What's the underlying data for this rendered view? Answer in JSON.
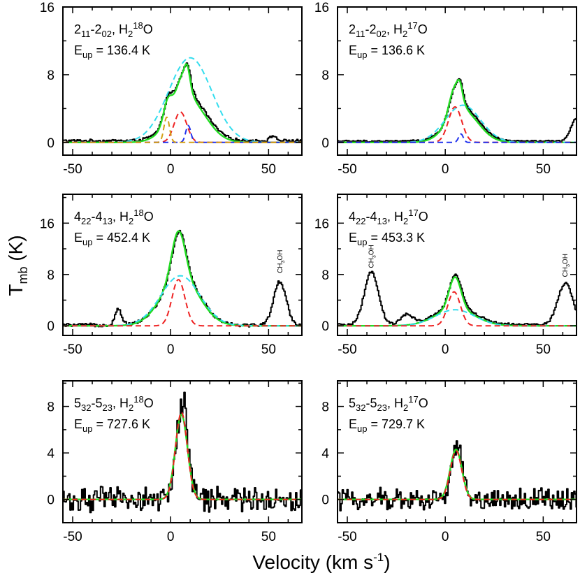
{
  "figure": {
    "ylabel": "Tmb (K)",
    "ylabel_parts": {
      "main": "T",
      "sub": "mb",
      "rest": " (K)"
    },
    "xlabel": "Velocity (km s-1)",
    "xlabel_parts": {
      "main": "Velocity (km s",
      "sup": "-1",
      "rest": ")"
    }
  },
  "chart_data": [
    {
      "type": "line",
      "label_line1": {
        "parts": [
          "2",
          "_11",
          "-2",
          "_02",
          ", H",
          "_2",
          "^18",
          "O"
        ]
      },
      "label_line2": {
        "parts": [
          "E",
          "_up",
          " = 136.4 K"
        ]
      },
      "transition": "2_11-2_02, H2 18O",
      "eup": "136.4 K",
      "xlim": [
        -55,
        67
      ],
      "ylim": [
        -1.5,
        16
      ],
      "xticks": [
        -50,
        0,
        50
      ],
      "yticks": [
        0,
        8,
        16
      ],
      "series": [
        {
          "color": "#000000",
          "style": "solid",
          "width": 2.0,
          "kind": "observed",
          "gaussians": [
            {
              "a": 5.2,
              "c": 9,
              "s": 9
            },
            {
              "a": 3.0,
              "c": 6,
              "s": 3.2
            },
            {
              "a": 1.6,
              "c": 8.5,
              "s": 1.3
            },
            {
              "a": 2.6,
              "c": -1.5,
              "s": 2.2
            },
            {
              "a": 0.6,
              "c": 52,
              "s": 1.5
            }
          ],
          "baseline": 0.2,
          "noise": 0.15,
          "step": 0.6
        },
        {
          "color": "#22dd22",
          "style": "solid",
          "width": 2.4,
          "kind": "total_fit",
          "gaussians": [
            {
              "a": 5.0,
              "c": 9,
              "s": 9
            },
            {
              "a": 3.2,
              "c": 6,
              "s": 3.2
            },
            {
              "a": 1.8,
              "c": 8.5,
              "s": 1.3
            },
            {
              "a": 2.5,
              "c": -1.5,
              "s": 2.2
            }
          ]
        },
        {
          "color": "#33ddee",
          "style": "dashed",
          "width": 2.0,
          "kind": "broad",
          "gaussians": [
            {
              "a": 10.0,
              "c": 10,
              "s": 11
            }
          ]
        },
        {
          "color": "#ee2222",
          "style": "dashed",
          "width": 2.0,
          "kind": "medium",
          "gaussians": [
            {
              "a": 3.6,
              "c": 5,
              "s": 3.2
            }
          ]
        },
        {
          "color": "#2233ee",
          "style": "dashed",
          "width": 2.0,
          "kind": "narrow",
          "gaussians": [
            {
              "a": 2.0,
              "c": 9,
              "s": 1.3
            }
          ]
        },
        {
          "color": "#d4a017",
          "style": "dashed",
          "width": 2.0,
          "kind": "blend",
          "gaussians": [
            {
              "a": 3.0,
              "c": -2,
              "s": 1.4
            }
          ]
        }
      ],
      "annotations": []
    },
    {
      "type": "line",
      "label_line1": {
        "parts": [
          "2",
          "_11",
          "-2",
          "_02",
          ", H",
          "_2",
          "^17",
          "O"
        ]
      },
      "label_line2": {
        "parts": [
          "E",
          "_up",
          " = 136.6 K"
        ]
      },
      "transition": "2_11-2_02, H2 17O",
      "eup": "136.6 K",
      "xlim": [
        -55,
        67
      ],
      "ylim": [
        -1.5,
        16
      ],
      "xticks": [
        -50,
        0,
        50
      ],
      "yticks": [
        0,
        8,
        16
      ],
      "series": [
        {
          "color": "#000000",
          "style": "solid",
          "width": 2.0,
          "kind": "observed",
          "gaussians": [
            {
              "a": 3.8,
              "c": 9,
              "s": 8
            },
            {
              "a": 3.2,
              "c": 5,
              "s": 3
            },
            {
              "a": 1.2,
              "c": 7.5,
              "s": 1.2
            },
            {
              "a": 2.7,
              "c": 67,
              "s": 3
            }
          ],
          "baseline": 0.15,
          "noise": 0.1,
          "step": 0.6
        },
        {
          "color": "#22dd22",
          "style": "solid",
          "width": 2.4,
          "kind": "total_fit",
          "gaussians": [
            {
              "a": 3.7,
              "c": 9,
              "s": 8
            },
            {
              "a": 3.4,
              "c": 5,
              "s": 3
            },
            {
              "a": 1.2,
              "c": 7.5,
              "s": 1.2
            }
          ]
        },
        {
          "color": "#33ddee",
          "style": "dashed",
          "width": 2.0,
          "kind": "broad",
          "gaussians": [
            {
              "a": 4.4,
              "c": 9,
              "s": 9
            }
          ]
        },
        {
          "color": "#ee2222",
          "style": "dashed",
          "width": 2.0,
          "kind": "medium",
          "gaussians": [
            {
              "a": 4.2,
              "c": 5,
              "s": 3.4
            }
          ]
        },
        {
          "color": "#2233ee",
          "style": "dashed",
          "width": 2.0,
          "kind": "narrow",
          "gaussians": [
            {
              "a": 1.0,
              "c": 8,
              "s": 1.2
            }
          ]
        }
      ],
      "annotations": []
    },
    {
      "type": "line",
      "label_line1": {
        "parts": [
          "4",
          "_22",
          "-4",
          "_13",
          ", H",
          "_2",
          "^18",
          "O"
        ]
      },
      "label_line2": {
        "parts": [
          "E",
          "_up",
          " = 452.4 K"
        ]
      },
      "transition": "4_22-4_13, H2 18O",
      "eup": "452.4 K",
      "xlim": [
        -55,
        67
      ],
      "ylim": [
        -1.5,
        20.5
      ],
      "xticks": [
        -50,
        0,
        50
      ],
      "yticks": [
        0,
        8,
        16
      ],
      "series": [
        {
          "color": "#000000",
          "style": "solid",
          "width": 2.0,
          "kind": "observed",
          "gaussians": [
            {
              "a": 7.6,
              "c": 5,
              "s": 9.5
            },
            {
              "a": 7.0,
              "c": 4,
              "s": 3.4
            },
            {
              "a": 2.5,
              "c": -27,
              "s": 1.7
            },
            {
              "a": 6.8,
              "c": 55.5,
              "s": 3.2
            }
          ],
          "baseline": 0.1,
          "noise": 0.25,
          "step": 0.6
        },
        {
          "color": "#22dd22",
          "style": "solid",
          "width": 2.4,
          "kind": "total_fit",
          "gaussians": [
            {
              "a": 7.6,
              "c": 5,
              "s": 9.5
            },
            {
              "a": 7.2,
              "c": 4,
              "s": 3.4
            }
          ]
        },
        {
          "color": "#33ddee",
          "style": "dashed",
          "width": 2.0,
          "kind": "broad",
          "gaussians": [
            {
              "a": 7.8,
              "c": 5,
              "s": 10
            }
          ]
        },
        {
          "color": "#ee2222",
          "style": "dashed",
          "width": 2.0,
          "kind": "medium",
          "gaussians": [
            {
              "a": 7.2,
              "c": 4,
              "s": 3.3
            }
          ]
        }
      ],
      "annotations": [
        {
          "text": "CH3OH",
          "main": "CH",
          "sub": "3",
          "rest": "OH",
          "x": 55.5,
          "y": 8.2
        }
      ]
    },
    {
      "type": "line",
      "label_line1": {
        "parts": [
          "4",
          "_22",
          "-4",
          "_13",
          ", H",
          "_2",
          "^17",
          "O"
        ]
      },
      "label_line2": {
        "parts": [
          "E",
          "_up",
          " = 453.3 K"
        ]
      },
      "transition": "4_22-4_13, H2 17O",
      "eup": "453.3 K",
      "xlim": [
        -55,
        67
      ],
      "ylim": [
        -1.5,
        20.5
      ],
      "xticks": [
        -50,
        0,
        50
      ],
      "yticks": [
        0,
        8,
        16
      ],
      "series": [
        {
          "color": "#000000",
          "style": "solid",
          "width": 2.0,
          "kind": "observed",
          "gaussians": [
            {
              "a": 2.8,
              "c": 5,
              "s": 10
            },
            {
              "a": 5.0,
              "c": 5,
              "s": 3
            },
            {
              "a": 8.2,
              "c": -38,
              "s": 3.6
            },
            {
              "a": 6.5,
              "c": 61,
              "s": 3.8
            },
            {
              "a": 1.5,
              "c": -20,
              "s": 3
            }
          ],
          "baseline": 0.15,
          "noise": 0.2,
          "step": 0.6
        },
        {
          "color": "#22dd22",
          "style": "solid",
          "width": 2.4,
          "kind": "total_fit",
          "gaussians": [
            {
              "a": 2.6,
              "c": 5,
              "s": 10
            },
            {
              "a": 5.0,
              "c": 5,
              "s": 3
            }
          ]
        },
        {
          "color": "#33ddee",
          "style": "dashed",
          "width": 2.0,
          "kind": "broad",
          "gaussians": [
            {
              "a": 2.5,
              "c": 5,
              "s": 10
            }
          ]
        },
        {
          "color": "#ee2222",
          "style": "dashed",
          "width": 2.0,
          "kind": "medium",
          "gaussians": [
            {
              "a": 5.3,
              "c": 4.5,
              "s": 3.2
            }
          ]
        }
      ],
      "annotations": [
        {
          "text": "CH3OH",
          "main": "CH",
          "sub": "3",
          "rest": "OH",
          "x": -38,
          "y": 9.0
        },
        {
          "text": "CH3OH",
          "main": "CH",
          "sub": "3",
          "rest": "OH",
          "x": 61,
          "y": 7.6
        }
      ]
    },
    {
      "type": "line",
      "label_line1": {
        "parts": [
          "5",
          "_32",
          "-5",
          "_23",
          ", H",
          "_2",
          "^18",
          "O"
        ]
      },
      "label_line2": {
        "parts": [
          "E",
          "_up",
          " = 727.6 K"
        ]
      },
      "transition": "5_32-5_23, H2 18O",
      "eup": "727.6 K",
      "xlim": [
        -55,
        67
      ],
      "ylim": [
        -2,
        10.2
      ],
      "xticks": [
        -50,
        0,
        50
      ],
      "yticks": [
        0,
        4,
        8
      ],
      "series": [
        {
          "color": "#000000",
          "style": "solid",
          "width": 2.0,
          "kind": "observed",
          "gaussians": [
            {
              "a": 7.8,
              "c": 5.5,
              "s": 3.0
            },
            {
              "a": 1.4,
              "c": 7,
              "s": 0.8
            }
          ],
          "baseline": 0.0,
          "noise": 1.0,
          "step": 0.6
        },
        {
          "color": "#22dd22",
          "style": "solid",
          "width": 2.4,
          "kind": "total_fit",
          "gaussians": [
            {
              "a": 7.3,
              "c": 5.5,
              "s": 3.1
            }
          ]
        },
        {
          "color": "#ee2222",
          "style": "dashed",
          "width": 2.0,
          "kind": "medium",
          "gaussians": [
            {
              "a": 7.5,
              "c": 5.5,
              "s": 3.0
            }
          ]
        }
      ],
      "annotations": []
    },
    {
      "type": "line",
      "label_line1": {
        "parts": [
          "5",
          "_32",
          "-5",
          "_23",
          ", H",
          "_2",
          "^17",
          "O"
        ]
      },
      "label_line2": {
        "parts": [
          "E",
          "_up",
          " = 729.7 K"
        ]
      },
      "transition": "5_32-5_23, H2 17O",
      "eup": "729.7 K",
      "xlim": [
        -55,
        67
      ],
      "ylim": [
        -2,
        10.2
      ],
      "xticks": [
        -50,
        0,
        50
      ],
      "yticks": [
        0,
        4,
        8
      ],
      "series": [
        {
          "color": "#000000",
          "style": "solid",
          "width": 2.0,
          "kind": "observed",
          "gaussians": [
            {
              "a": 4.6,
              "c": 5.5,
              "s": 2.8
            }
          ],
          "baseline": 0.0,
          "noise": 0.9,
          "step": 0.6
        },
        {
          "color": "#22dd22",
          "style": "solid",
          "width": 2.4,
          "kind": "total_fit",
          "gaussians": [
            {
              "a": 4.3,
              "c": 5.5,
              "s": 3.0
            }
          ]
        },
        {
          "color": "#ee2222",
          "style": "dashed",
          "width": 2.0,
          "kind": "medium",
          "gaussians": [
            {
              "a": 4.2,
              "c": 5.5,
              "s": 2.9
            }
          ]
        }
      ],
      "annotations": []
    }
  ]
}
